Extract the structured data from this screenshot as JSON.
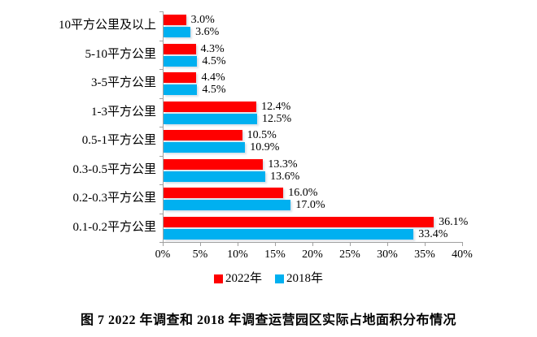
{
  "chart_data": {
    "type": "bar",
    "orientation": "horizontal",
    "title": "",
    "xlabel": "",
    "ylabel": "",
    "xlim": [
      0,
      40
    ],
    "grid": false,
    "legend_position": "bottom",
    "categories": [
      "10平方公里及以上",
      "5-10平方公里",
      "3-5平方公里",
      "1-3平方公里",
      "0.5-1平方公里",
      "0.3-0.5平方公里",
      "0.2-0.3平方公里",
      "0.1-0.2平方公里"
    ],
    "series": [
      {
        "name": "2022年",
        "color": "#FF0000",
        "values": [
          3.0,
          4.3,
          4.4,
          12.4,
          10.5,
          13.3,
          16.0,
          36.1
        ],
        "labels": [
          "3.0%",
          "4.3%",
          "4.4%",
          "12.4%",
          "10.5%",
          "13.3%",
          "16.0%",
          "36.1%"
        ]
      },
      {
        "name": "2018年",
        "color": "#00B0F0",
        "values": [
          3.6,
          4.5,
          4.5,
          12.5,
          10.9,
          13.6,
          17.0,
          33.4
        ],
        "labels": [
          "3.6%",
          "4.5%",
          "4.5%",
          "12.5%",
          "10.9%",
          "13.6%",
          "17.0%",
          "33.4%"
        ]
      }
    ],
    "x_ticks": [
      "0%",
      "5%",
      "10%",
      "15%",
      "20%",
      "25%",
      "30%",
      "35%",
      "40%"
    ]
  },
  "caption": "图 7  2022 年调查和 2018 年调查运营园区实际占地面积分布情况",
  "colors": {
    "series_2022": "#FF0000",
    "series_2018": "#00B0F0",
    "axis": "#a0a0a0",
    "text": "#000000",
    "background": "#ffffff"
  }
}
